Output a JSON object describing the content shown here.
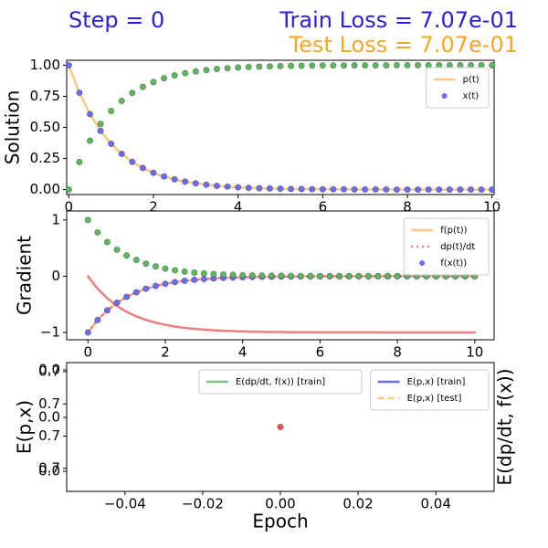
{
  "header": {
    "step": "Step = 0",
    "train_loss": "Train Loss = 7.07e-01",
    "test_loss": "Test Loss = 7.07e-01"
  },
  "chart_data": [
    {
      "type": "scatter",
      "ylabel": "Solution",
      "x": [
        0,
        0.25,
        0.5,
        0.75,
        1,
        1.25,
        1.5,
        1.75,
        2,
        2.25,
        2.5,
        2.75,
        3,
        3.25,
        3.5,
        3.75,
        4,
        4.25,
        4.5,
        4.75,
        5,
        5.25,
        5.5,
        5.75,
        6,
        6.25,
        6.5,
        6.75,
        7,
        7.25,
        7.5,
        7.75,
        8,
        8.25,
        8.5,
        8.75,
        9,
        9.25,
        9.5,
        9.75,
        10
      ],
      "xlim": [
        -0.05,
        10.05
      ],
      "xticks": [
        0,
        2,
        4,
        6,
        8,
        10
      ],
      "ylim": [
        -0.04,
        1.04
      ],
      "yticks": [
        {
          "value": 0,
          "label": "0.00"
        },
        {
          "value": 0.25,
          "label": "0.25"
        },
        {
          "value": 0.5,
          "label": "0.50"
        },
        {
          "value": 0.75,
          "label": "0.75"
        },
        {
          "value": 1,
          "label": "1.00"
        }
      ],
      "legend": "upper right",
      "series": [
        {
          "name": "p(t)",
          "color": "#ffc87a",
          "style": "line",
          "values": [
            1,
            0.779,
            0.607,
            0.472,
            0.368,
            0.287,
            0.223,
            0.174,
            0.135,
            0.105,
            0.082,
            0.064,
            0.05,
            0.039,
            0.03,
            0.024,
            0.018,
            0.014,
            0.011,
            0.009,
            0.007,
            0.005,
            0.004,
            0.003,
            0.002,
            0.002,
            0.002,
            0.001,
            0.001,
            0.001,
            0.001,
            0,
            0,
            0,
            0,
            0,
            0,
            0,
            0,
            0,
            0
          ]
        },
        {
          "name": "x(t)",
          "color": "#6b6bf5",
          "style": "dots",
          "values": [
            1,
            0.779,
            0.607,
            0.472,
            0.368,
            0.287,
            0.223,
            0.174,
            0.135,
            0.105,
            0.082,
            0.064,
            0.05,
            0.039,
            0.03,
            0.024,
            0.018,
            0.014,
            0.011,
            0.009,
            0.007,
            0.005,
            0.004,
            0.003,
            0.002,
            0.002,
            0.002,
            0.001,
            0.001,
            0.001,
            0.001,
            0,
            0,
            0,
            0,
            0,
            0,
            0,
            0,
            0,
            0
          ]
        },
        {
          "color": "#5cb85c",
          "style": "dots",
          "values": [
            0,
            0.221,
            0.393,
            0.528,
            0.632,
            0.713,
            0.777,
            0.826,
            0.865,
            0.895,
            0.918,
            0.936,
            0.95,
            0.961,
            0.97,
            0.976,
            0.982,
            0.986,
            0.989,
            0.991,
            0.993,
            0.995,
            0.996,
            0.997,
            0.998,
            0.998,
            0.998,
            0.999,
            0.999,
            0.999,
            0.999,
            1,
            1,
            1,
            1,
            1,
            1,
            1,
            1,
            1,
            1
          ]
        }
      ]
    },
    {
      "type": "scatter",
      "ylabel": "Gradient",
      "x": [
        0,
        0.25,
        0.5,
        0.75,
        1,
        1.25,
        1.5,
        1.75,
        2,
        2.25,
        2.5,
        2.75,
        3,
        3.25,
        3.5,
        3.75,
        4,
        4.25,
        4.5,
        4.75,
        5,
        5.25,
        5.5,
        5.75,
        6,
        6.25,
        6.5,
        6.75,
        7,
        7.25,
        7.5,
        7.75,
        8,
        8.25,
        8.5,
        8.75,
        9,
        9.25,
        9.5,
        9.75,
        10
      ],
      "xlim": [
        -0.55,
        10.5
      ],
      "xticks": [
        0,
        2,
        4,
        6,
        8,
        10
      ],
      "ylim": [
        -1.13,
        1.16
      ],
      "yticks": [
        {
          "value": -1,
          "label": "−1"
        },
        0,
        1
      ],
      "legend": "upper right",
      "series": [
        {
          "name": "f(p(t))",
          "color": "#ffc87a",
          "style": "line",
          "values": [
            -1,
            -0.779,
            -0.607,
            -0.472,
            -0.368,
            -0.287,
            -0.223,
            -0.174,
            -0.135,
            -0.105,
            -0.082,
            -0.064,
            -0.05,
            -0.039,
            -0.03,
            -0.024,
            -0.018,
            -0.014,
            -0.011,
            -0.009,
            -0.007,
            -0.005,
            -0.004,
            -0.003,
            -0.002,
            -0.002,
            -0.002,
            -0.001,
            -0.001,
            -0.001,
            -0.001,
            0,
            0,
            0,
            0,
            0,
            0,
            0,
            0,
            0,
            0
          ]
        },
        {
          "color": "#f27b7b",
          "style": "line",
          "values": [
            0,
            -0.221,
            -0.393,
            -0.528,
            -0.632,
            -0.713,
            -0.777,
            -0.826,
            -0.865,
            -0.895,
            -0.918,
            -0.936,
            -0.95,
            -0.961,
            -0.97,
            -0.976,
            -0.982,
            -0.986,
            -0.989,
            -0.991,
            -0.993,
            -0.995,
            -0.996,
            -0.997,
            -0.998,
            -0.998,
            -0.998,
            -0.999,
            -0.999,
            -0.999,
            -0.999,
            -1,
            -1,
            -1,
            -1,
            -1,
            -1,
            -1,
            -1,
            -1,
            -1
          ]
        },
        {
          "name": "dp(t)/dt",
          "color": "#f27b8f",
          "style": "dotted",
          "values": [
            -1,
            -0.779,
            -0.607,
            -0.472,
            -0.368,
            -0.287,
            -0.223,
            -0.174,
            -0.135,
            -0.105,
            -0.082,
            -0.064,
            -0.05,
            -0.039,
            -0.03,
            -0.024,
            -0.018,
            -0.014,
            -0.011,
            -0.009,
            -0.007,
            -0.005,
            -0.004,
            -0.003,
            -0.002,
            -0.002,
            -0.002,
            -0.001,
            -0.001,
            -0.001,
            -0.001,
            0,
            0,
            0,
            0,
            0,
            0,
            0,
            0,
            0,
            0
          ]
        },
        {
          "name": "f(x(t))",
          "color": "#6b6bf5",
          "style": "dots",
          "values": [
            -1,
            -0.779,
            -0.607,
            -0.472,
            -0.368,
            -0.287,
            -0.223,
            -0.174,
            -0.135,
            -0.105,
            -0.082,
            -0.064,
            -0.05,
            -0.039,
            -0.03,
            -0.024,
            -0.018,
            -0.014,
            -0.011,
            -0.009,
            -0.007,
            -0.005,
            -0.004,
            -0.003,
            -0.002,
            -0.002,
            -0.002,
            -0.001,
            -0.001,
            -0.001,
            -0.001,
            0,
            0,
            0,
            0,
            0,
            0,
            0,
            0,
            0,
            0
          ]
        },
        {
          "color": "#5cb85c",
          "style": "dots",
          "values": [
            1,
            0.779,
            0.607,
            0.472,
            0.368,
            0.287,
            0.223,
            0.174,
            0.135,
            0.105,
            0.082,
            0.064,
            0.05,
            0.039,
            0.03,
            0.024,
            0.018,
            0.014,
            0.011,
            0.009,
            0.007,
            0.005,
            0.004,
            0.003,
            0.002,
            0.002,
            0.002,
            0.001,
            0.001,
            0.001,
            0.001,
            0,
            0,
            0,
            0,
            0,
            0,
            0,
            0,
            0,
            0
          ]
        }
      ]
    },
    {
      "type": "line",
      "xlabel": "Epoch",
      "ylabel": "E(p,x)",
      "y2label": "E(dp/dt, f(x))",
      "x": [
        0
      ],
      "xlim": [
        -0.055,
        0.055
      ],
      "xticks": [
        {
          "value": -0.04,
          "label": "−0.04"
        },
        {
          "value": -0.02,
          "label": "−0.02"
        },
        {
          "value": 0,
          "label": "0.00"
        },
        0.02,
        0.04
      ],
      "ylim": [
        0.6571,
        0.7571
      ],
      "yticks": [
        {
          "value": 0.75,
          "label": "0.7"
        },
        {
          "value": 0.725,
          "label": "0.7"
        },
        {
          "value": 0.7,
          "label": "0.7"
        },
        {
          "value": 0.675,
          "label": "0.7"
        }
      ],
      "y2lim": [
        0.6571,
        0.7571
      ],
      "y2ticks": [
        {
          "value": 0.7514,
          "label": "0.0"
        },
        {
          "value": 0.7145,
          "label": "0.0"
        },
        {
          "value": 0.6727,
          "label": "0.0"
        }
      ],
      "legend": "upper right",
      "legend2": "upper center",
      "series": [
        {
          "name": "E(p,x) [train]",
          "color": "#6b6bf5",
          "style": "line",
          "values": [
            0.7071
          ]
        },
        {
          "name": "E(p,x) [test]",
          "color": "#ffc87a",
          "style": "dashed",
          "values": [
            0.7071
          ]
        },
        {
          "name": "E(dp/dt, f(x)) [train]",
          "color": "#7cc47c",
          "style": "line",
          "axis": "y2",
          "values": [
            0.7071
          ]
        },
        {
          "color": "#e8554e",
          "style": "dots",
          "values": [
            0.7071
          ]
        }
      ]
    }
  ]
}
